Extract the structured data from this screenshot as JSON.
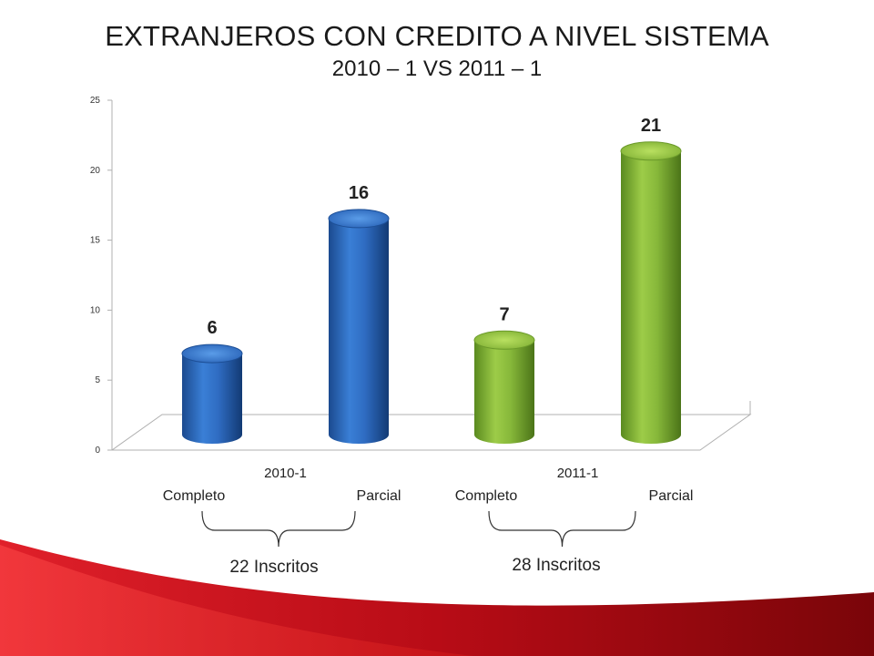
{
  "slide": {
    "title": "EXTRANJEROS CON CREDITO A NIVEL SISTEMA",
    "subtitle": "2010 – 1 VS 2011 – 1"
  },
  "chart_data": {
    "type": "bar",
    "style": "3d-cylinder",
    "ylim": [
      0,
      25
    ],
    "yticks": [
      0,
      5,
      10,
      15,
      20,
      25
    ],
    "grid": false,
    "groups": [
      {
        "label": "2010-1",
        "total_label": "22 Inscritos",
        "color": "#2a64b8",
        "bars": [
          {
            "category": "Completo",
            "value": 6,
            "value_label": "6"
          },
          {
            "category": "Parcial",
            "value": 16,
            "value_label": "16"
          }
        ]
      },
      {
        "label": "2011-1",
        "total_label": "28 Inscritos",
        "color": "#7aa833",
        "bars": [
          {
            "category": "Completo",
            "value": 7,
            "value_label": "7"
          },
          {
            "category": "Parcial",
            "value": 21,
            "value_label": "21"
          }
        ]
      }
    ]
  },
  "colors": {
    "blue": "#2a64b8",
    "green": "#7aa833",
    "accent_red": "#c0101a"
  }
}
